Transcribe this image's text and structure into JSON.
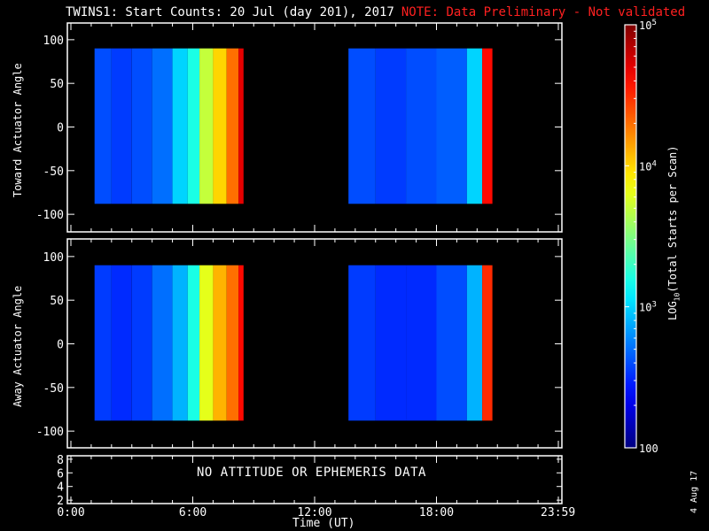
{
  "header": {
    "title": "TWINS1: Start Counts: 20 Jul (day 201), 2017",
    "note": "NOTE: Data Preliminary - Not validated"
  },
  "colors": {
    "frame": "#ffffff",
    "note": "#ff2020",
    "background": "#000000"
  },
  "chart_data": [
    {
      "type": "heatmap",
      "panel": "top",
      "ylabel": "Toward Actuator Angle",
      "ylim": [
        -110,
        110
      ],
      "yticks": [
        100,
        50,
        0,
        -50,
        -100
      ],
      "xlim": [
        "0:00",
        "24:00"
      ],
      "x_time_ticks": [
        "0:00",
        "6:00",
        "12:00",
        "18:00",
        "23:59"
      ],
      "data_angle_range": [
        -88,
        90
      ],
      "segments": [
        {
          "start": "1:10",
          "end": "8:30"
        },
        {
          "start": "13:40",
          "end": "20:45"
        }
      ],
      "columns_log10": [
        {
          "t": "1:10",
          "v": 2.6
        },
        {
          "t": "2:00",
          "v": 2.55
        },
        {
          "t": "3:00",
          "v": 2.6
        },
        {
          "t": "4:00",
          "v": 2.7
        },
        {
          "t": "5:00",
          "v": 3.0
        },
        {
          "t": "5:45",
          "v": 3.2
        },
        {
          "t": "6:20",
          "v": 3.7
        },
        {
          "t": "7:00",
          "v": 4.0
        },
        {
          "t": "7:40",
          "v": 4.3
        },
        {
          "t": "8:15",
          "v": 4.7
        },
        {
          "t": "13:40",
          "v": 2.6
        },
        {
          "t": "15:00",
          "v": 2.55
        },
        {
          "t": "16:30",
          "v": 2.6
        },
        {
          "t": "18:00",
          "v": 2.65
        },
        {
          "t": "19:30",
          "v": 3.0
        },
        {
          "t": "20:15",
          "v": 4.6
        }
      ]
    },
    {
      "type": "heatmap",
      "panel": "middle",
      "ylabel": "Away Actuator Angle",
      "ylim": [
        -110,
        110
      ],
      "yticks": [
        100,
        50,
        0,
        -50,
        -100
      ],
      "xlim": [
        "0:00",
        "24:00"
      ],
      "x_time_ticks": [
        "0:00",
        "6:00",
        "12:00",
        "18:00",
        "23:59"
      ],
      "data_angle_range": [
        -88,
        90
      ],
      "segments": [
        {
          "start": "1:10",
          "end": "8:30"
        },
        {
          "start": "13:40",
          "end": "20:45"
        }
      ],
      "columns_log10": [
        {
          "t": "1:10",
          "v": 2.55
        },
        {
          "t": "2:00",
          "v": 2.5
        },
        {
          "t": "3:00",
          "v": 2.55
        },
        {
          "t": "4:00",
          "v": 2.7
        },
        {
          "t": "5:00",
          "v": 2.9
        },
        {
          "t": "5:45",
          "v": 3.2
        },
        {
          "t": "6:20",
          "v": 3.8
        },
        {
          "t": "7:00",
          "v": 4.1
        },
        {
          "t": "7:40",
          "v": 4.3
        },
        {
          "t": "8:15",
          "v": 4.6
        },
        {
          "t": "13:40",
          "v": 2.55
        },
        {
          "t": "15:00",
          "v": 2.5
        },
        {
          "t": "16:30",
          "v": 2.5
        },
        {
          "t": "18:00",
          "v": 2.6
        },
        {
          "t": "19:30",
          "v": 2.9
        },
        {
          "t": "20:15",
          "v": 4.5
        }
      ]
    },
    {
      "type": "line",
      "panel": "bottom",
      "yticks": [
        8,
        6,
        4,
        2
      ],
      "ylim": [
        1.5,
        8.5
      ],
      "message": "NO ATTITUDE OR EPHEMERIS DATA",
      "x_tick_labels": [
        "0:00",
        "6:00",
        "12:00",
        "18:00",
        "23:59"
      ],
      "xlabel": "Time (UT)"
    }
  ],
  "colorbar": {
    "label": "LOG10(Total Starts per Scan)",
    "range_log10": [
      2,
      5
    ],
    "tick_labels": [
      {
        "text": "10",
        "sup": "5",
        "log10": 5
      },
      {
        "text": "10",
        "sup": "4",
        "log10": 4
      },
      {
        "text": "10",
        "sup": "3",
        "log10": 3
      },
      {
        "text": "100",
        "sup": "",
        "log10": 2
      }
    ]
  },
  "footer": {
    "date": "4 Aug 17"
  }
}
